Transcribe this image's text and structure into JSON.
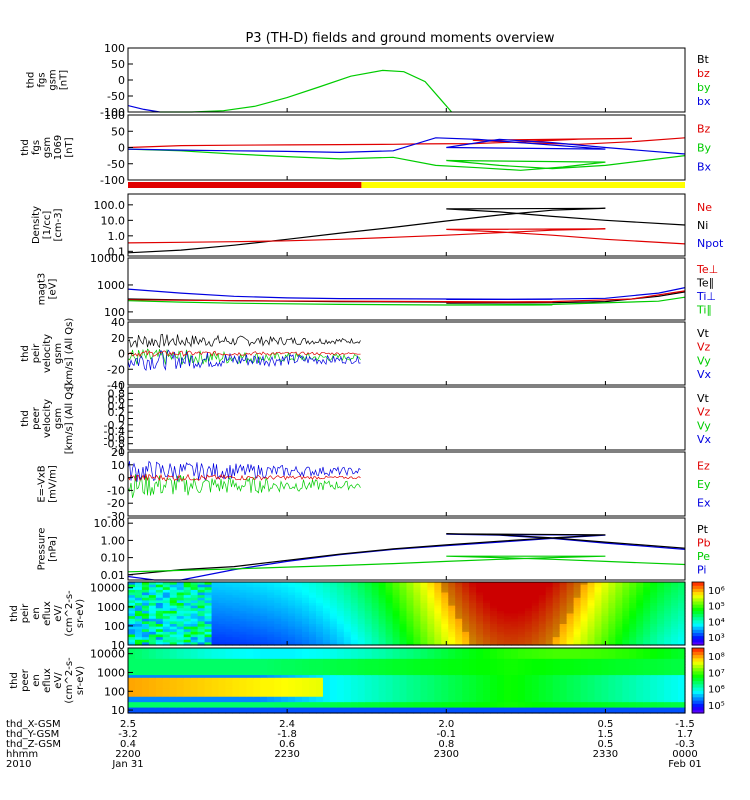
{
  "title": "P3 (TH-D) fields and ground moments overview",
  "chart_data": [
    {
      "type": "line",
      "ylabel": [
        "thd",
        "fgs",
        "gsm",
        "[nT]"
      ],
      "ylim": [
        -100,
        100
      ],
      "log": false,
      "yticks": [
        -100,
        -50,
        0,
        50,
        100
      ],
      "legend": [
        [
          "Bt",
          "#000000"
        ],
        [
          "bz",
          "#e00000"
        ],
        [
          "by",
          "#00cc00"
        ],
        [
          "bx",
          "#0000e0"
        ]
      ],
      "series": [
        {
          "color": "#0000e0",
          "x": [
            2200,
            2203,
            2206
          ],
          "y": [
            -80,
            -92,
            -100
          ]
        },
        {
          "color": "#00cc00",
          "x": [
            2206,
            2212,
            2218,
            2224,
            2230,
            2236,
            2242,
            2248,
            2252,
            2256,
            2259,
            2261
          ],
          "y": [
            -100,
            -100,
            -96,
            -82,
            -55,
            -22,
            12,
            30,
            26,
            -5,
            -62,
            -100
          ]
        }
      ]
    },
    {
      "type": "line",
      "ylabel": [
        "thd",
        "fgs",
        "gsm",
        "1069",
        "[nT]"
      ],
      "ylim": [
        -100,
        100
      ],
      "log": false,
      "yticks": [
        -100,
        -50,
        0,
        50,
        100
      ],
      "legend": [
        [
          "Bz",
          "#e00000"
        ],
        [
          "By",
          "#00cc00"
        ],
        [
          "Bx",
          "#0000e0"
        ]
      ],
      "series": [
        {
          "color": "#e00000",
          "x": [
            2200,
            2210,
            2220,
            2230,
            2240,
            2250,
            2255,
            2265,
            2275,
            2285,
            2295,
            2305,
            2315,
            2325,
            2335,
            2345
          ],
          "y": [
            0,
            6,
            7,
            8,
            9,
            10,
            11,
            12,
            18,
            26,
            28,
            22,
            14,
            10,
            18,
            30
          ]
        },
        {
          "color": "#00cc00",
          "x": [
            2200,
            2210,
            2220,
            2230,
            2240,
            2250,
            2258,
            2266,
            2274,
            2282,
            2290,
            2300,
            2310,
            2320,
            2330,
            2345
          ],
          "y": [
            -5,
            -10,
            -20,
            -28,
            -35,
            -30,
            -55,
            -62,
            -70,
            -60,
            -45,
            -40,
            -55,
            -65,
            -55,
            -25
          ]
        },
        {
          "color": "#0000e0",
          "x": [
            2200,
            2210,
            2220,
            2230,
            2240,
            2250,
            2258,
            2266,
            2274,
            2282,
            2290,
            2300,
            2310,
            2320,
            2330,
            2345
          ],
          "y": [
            -5,
            -8,
            -10,
            -12,
            -15,
            -10,
            30,
            25,
            15,
            5,
            -5,
            0,
            25,
            15,
            0,
            -20
          ]
        }
      ]
    },
    {
      "type": "line",
      "ylabel": [
        "Density",
        "[1/cc]",
        "[cm-3]"
      ],
      "ylim": [
        0.05,
        500
      ],
      "log": true,
      "yticks": [
        0.1,
        1.0,
        10.0,
        100.0
      ],
      "yticklabels": [
        "0.1",
        "1.0",
        "10.0",
        "100.0"
      ],
      "legend": [
        [
          "Ne",
          "#e00000"
        ],
        [
          "Ni",
          "#000000"
        ],
        [
          "Npot",
          "#0000e0"
        ]
      ],
      "series": [
        {
          "color": "#000000",
          "x": [
            2200,
            2210,
            2220,
            2230,
            2240,
            2250,
            2260,
            2270,
            2280,
            2290,
            2300,
            2310,
            2320,
            2330,
            2345
          ],
          "y": [
            0.08,
            0.12,
            0.25,
            0.6,
            1.5,
            3.5,
            9,
            22,
            45,
            60,
            55,
            35,
            18,
            10,
            5
          ]
        },
        {
          "color": "#e00000",
          "x": [
            2200,
            2210,
            2220,
            2230,
            2240,
            2250,
            2260,
            2270,
            2280,
            2290,
            2300,
            2310,
            2320,
            2330,
            2345
          ],
          "y": [
            0.35,
            0.38,
            0.42,
            0.48,
            0.6,
            0.8,
            1.1,
            1.6,
            2.3,
            2.8,
            2.6,
            1.8,
            1.1,
            0.6,
            0.3
          ]
        }
      ]
    },
    {
      "type": "line",
      "ylabel": [
        "magt3",
        "[eV]"
      ],
      "ylim": [
        50,
        10000
      ],
      "log": true,
      "yticks": [
        100,
        1000,
        10000
      ],
      "yticklabels": [
        "100",
        "1000",
        "10000"
      ],
      "legend": [
        [
          "Te⊥",
          "#e00000"
        ],
        [
          "Te∥",
          "#000000"
        ],
        [
          "Ti⊥",
          "#0000e0"
        ],
        [
          "Ti∥",
          "#00cc00"
        ]
      ],
      "series": [
        {
          "color": "#0000e0",
          "x": [
            2200,
            2210,
            2220,
            2230,
            2240,
            2260,
            2280,
            2300,
            2320,
            2330,
            2340,
            2345
          ],
          "y": [
            700,
            500,
            380,
            330,
            310,
            300,
            290,
            290,
            300,
            320,
            500,
            800
          ]
        },
        {
          "color": "#000000",
          "x": [
            2200,
            2210,
            2220,
            2230,
            2240,
            2260,
            2280,
            2300,
            2320,
            2330,
            2340,
            2345
          ],
          "y": [
            300,
            280,
            260,
            250,
            240,
            230,
            220,
            210,
            220,
            240,
            380,
            550
          ]
        },
        {
          "color": "#e00000",
          "x": [
            2200,
            2220,
            2240,
            2260,
            2280,
            2300,
            2320,
            2335,
            2345
          ],
          "y": [
            280,
            260,
            250,
            240,
            230,
            230,
            240,
            300,
            600
          ]
        },
        {
          "color": "#00cc00",
          "x": [
            2200,
            2210,
            2220,
            2240,
            2260,
            2280,
            2300,
            2320,
            2340,
            2345
          ],
          "y": [
            260,
            230,
            210,
            190,
            180,
            180,
            180,
            190,
            250,
            350
          ]
        }
      ]
    },
    {
      "type": "line",
      "ylabel": [
        "thd",
        "peir",
        "velocity",
        "gsm",
        "[km/s] (All Qs)"
      ],
      "ylim": [
        -40,
        40
      ],
      "log": false,
      "yticks": [
        -40,
        -20,
        0,
        20,
        40
      ],
      "legend": [
        [
          "Vt",
          "#000000"
        ],
        [
          "Vz",
          "#e00000"
        ],
        [
          "Vy",
          "#00cc00"
        ],
        [
          "Vx",
          "#0000e0"
        ]
      ],
      "noise_end": 2244,
      "series": []
    },
    {
      "type": "line",
      "ylabel": [
        "thd",
        "peer",
        "velocity",
        "gsm",
        "[km/s] (All Qs)"
      ],
      "ylim": [
        -1,
        1
      ],
      "log": false,
      "yticks": [
        -1.0,
        -0.8,
        -0.6,
        -0.4,
        -0.2,
        0.0,
        0.2,
        0.4,
        0.6,
        0.8,
        1.0
      ],
      "legend": [
        [
          "Vt",
          "#000000"
        ],
        [
          "Vz",
          "#e00000"
        ],
        [
          "Vy",
          "#00cc00"
        ],
        [
          "Vx",
          "#0000e0"
        ]
      ],
      "series": []
    },
    {
      "type": "line",
      "ylabel": [
        "E=-VxB",
        "[mV/m]"
      ],
      "ylim": [
        -30,
        20
      ],
      "log": false,
      "yticks": [
        -30,
        -20,
        -10,
        0,
        10,
        20
      ],
      "legend": [
        [
          "Ez",
          "#e00000"
        ],
        [
          "Ey",
          "#00cc00"
        ],
        [
          "Ex",
          "#0000e0"
        ]
      ],
      "noise_end": 2244,
      "series": []
    },
    {
      "type": "line",
      "ylabel": [
        "Pressure",
        "[nPa]"
      ],
      "ylim": [
        0.005,
        20
      ],
      "log": true,
      "yticks": [
        0.01,
        0.1,
        1.0,
        10.0
      ],
      "yticklabels": [
        "0.01",
        "0.10",
        "1.00",
        "10.00"
      ],
      "legend": [
        [
          "Pt",
          "#000000"
        ],
        [
          "Pb",
          "#e00000"
        ],
        [
          "Pe",
          "#00cc00"
        ],
        [
          "Pi",
          "#0000e0"
        ]
      ],
      "series": [
        {
          "color": "#0000e0",
          "x": [
            2200,
            2205,
            2210,
            2220,
            2230,
            2240,
            2250,
            2260,
            2270,
            2280,
            2290,
            2300,
            2310,
            2320,
            2330,
            2345
          ],
          "y": [
            0.008,
            0.004,
            0.005,
            0.02,
            0.06,
            0.15,
            0.3,
            0.5,
            0.8,
            1.3,
            2.0,
            2.3,
            2.0,
            1.3,
            0.7,
            0.3
          ]
        },
        {
          "color": "#000000",
          "x": [
            2200,
            2210,
            2220,
            2230,
            2240,
            2250,
            2260,
            2270,
            2280,
            2290,
            2300,
            2310,
            2320,
            2330,
            2345
          ],
          "y": [
            0.01,
            0.02,
            0.03,
            0.07,
            0.16,
            0.32,
            0.55,
            0.9,
            1.4,
            2.1,
            2.4,
            2.1,
            1.4,
            0.8,
            0.35
          ]
        },
        {
          "color": "#00cc00",
          "x": [
            2200,
            2210,
            2220,
            2230,
            2240,
            2250,
            2260,
            2270,
            2280,
            2290,
            2300,
            2310,
            2320,
            2330,
            2345
          ],
          "y": [
            0.015,
            0.018,
            0.022,
            0.028,
            0.035,
            0.045,
            0.06,
            0.08,
            0.1,
            0.12,
            0.12,
            0.1,
            0.08,
            0.06,
            0.04
          ]
        }
      ]
    },
    {
      "type": "heatmap",
      "ylabel": [
        "thd",
        "peir",
        "en",
        "eflux",
        "eV/",
        "(cm^2-s-",
        "sr-eV)"
      ],
      "ylim": [
        10,
        20000
      ],
      "log": true,
      "yticks": [
        10,
        100,
        1000,
        10000
      ],
      "yticklabels": [
        "10",
        "100",
        "1000",
        "10000"
      ],
      "colorbar": [
        "10³",
        "10⁴",
        "10⁵",
        "10⁶"
      ]
    },
    {
      "type": "heatmap",
      "ylabel": [
        "thd",
        "peer",
        "en",
        "eflux",
        "eV/",
        "(cm^2-s-",
        "sr-eV)"
      ],
      "ylim": [
        7,
        20000
      ],
      "log": true,
      "yticks": [
        10,
        100,
        1000,
        10000
      ],
      "yticklabels": [
        "10",
        "100",
        "1000",
        "10000"
      ],
      "colorbar": [
        "10⁵",
        "10⁶",
        "10⁷",
        "10⁸"
      ]
    }
  ],
  "orbit_bar": {
    "split": 2244,
    "colors": [
      "#e00000",
      "#ffff00"
    ]
  },
  "xaxis": {
    "range": [
      2200,
      2345
    ],
    "ticks": [
      2200,
      2230,
      2300,
      2330,
      2345
    ],
    "rows": [
      {
        "label": "thd_X-GSM",
        "values": [
          "2.5",
          "2.4",
          "2.0",
          "0.5",
          "-1.5"
        ]
      },
      {
        "label": "thd_Y-GSM",
        "values": [
          "-3.2",
          "-1.8",
          "-0.1",
          "1.5",
          "1.7"
        ]
      },
      {
        "label": "thd_Z-GSM",
        "values": [
          "0.4",
          "0.6",
          "0.8",
          "0.5",
          "-0.3"
        ]
      },
      {
        "label": "hhmm",
        "values": [
          "2200",
          "2230",
          "2300",
          "2330",
          "0000"
        ]
      },
      {
        "label": "2010",
        "values": [
          "Jan 31",
          "",
          "",
          "",
          "Feb 01"
        ]
      }
    ]
  }
}
